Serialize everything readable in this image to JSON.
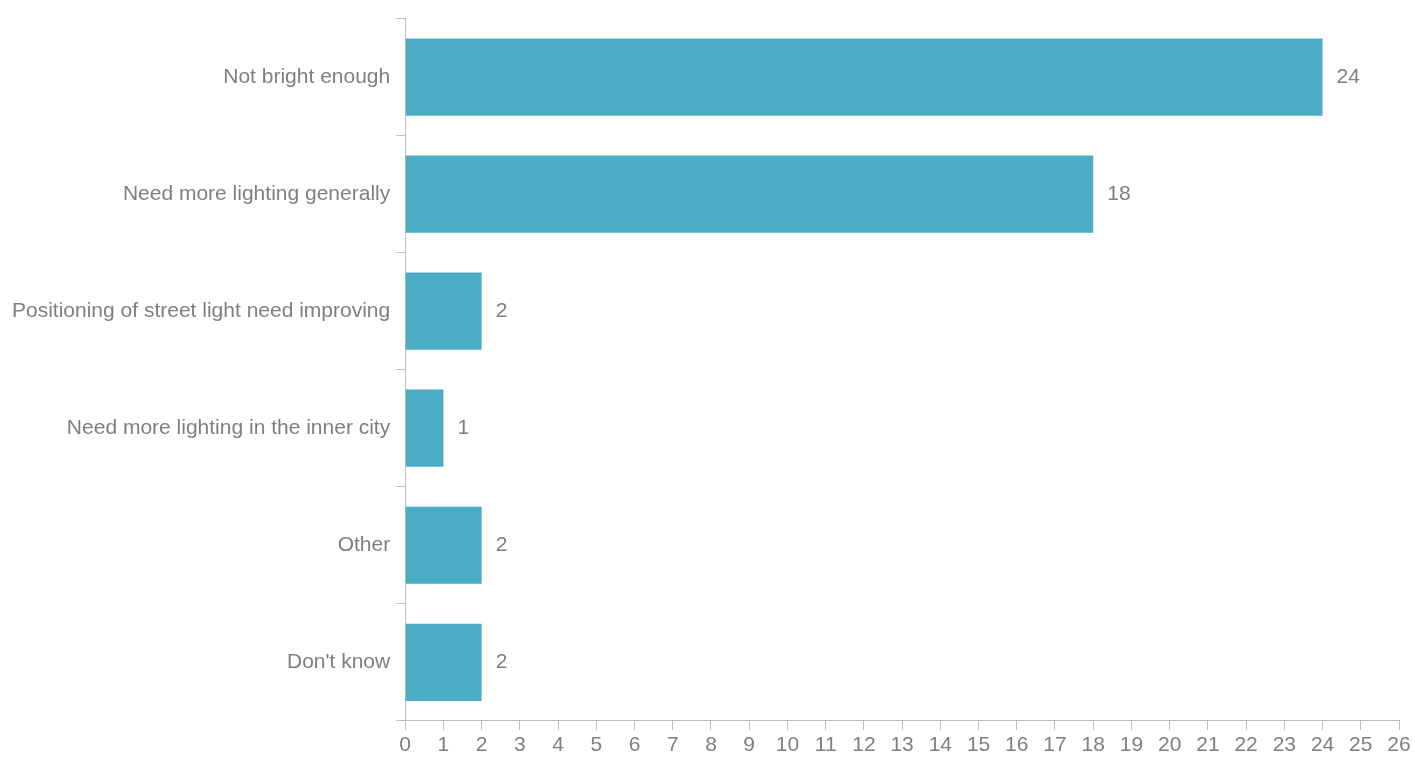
{
  "chart_data": {
    "type": "bar",
    "orientation": "horizontal",
    "categories": [
      "Not bright enough",
      "Need more lighting generally",
      "Positioning of street light need improving",
      "Need more lighting in the inner city",
      "Other",
      "Don't know"
    ],
    "values": [
      24,
      18,
      2,
      1,
      2,
      2
    ],
    "color": "#4bacc6",
    "xlim": [
      0,
      26
    ],
    "xticks": [
      0,
      1,
      2,
      3,
      4,
      5,
      6,
      7,
      8,
      9,
      10,
      11,
      12,
      13,
      14,
      15,
      16,
      17,
      18,
      19,
      20,
      21,
      22,
      23,
      24,
      25,
      26
    ],
    "data_labels": true
  }
}
